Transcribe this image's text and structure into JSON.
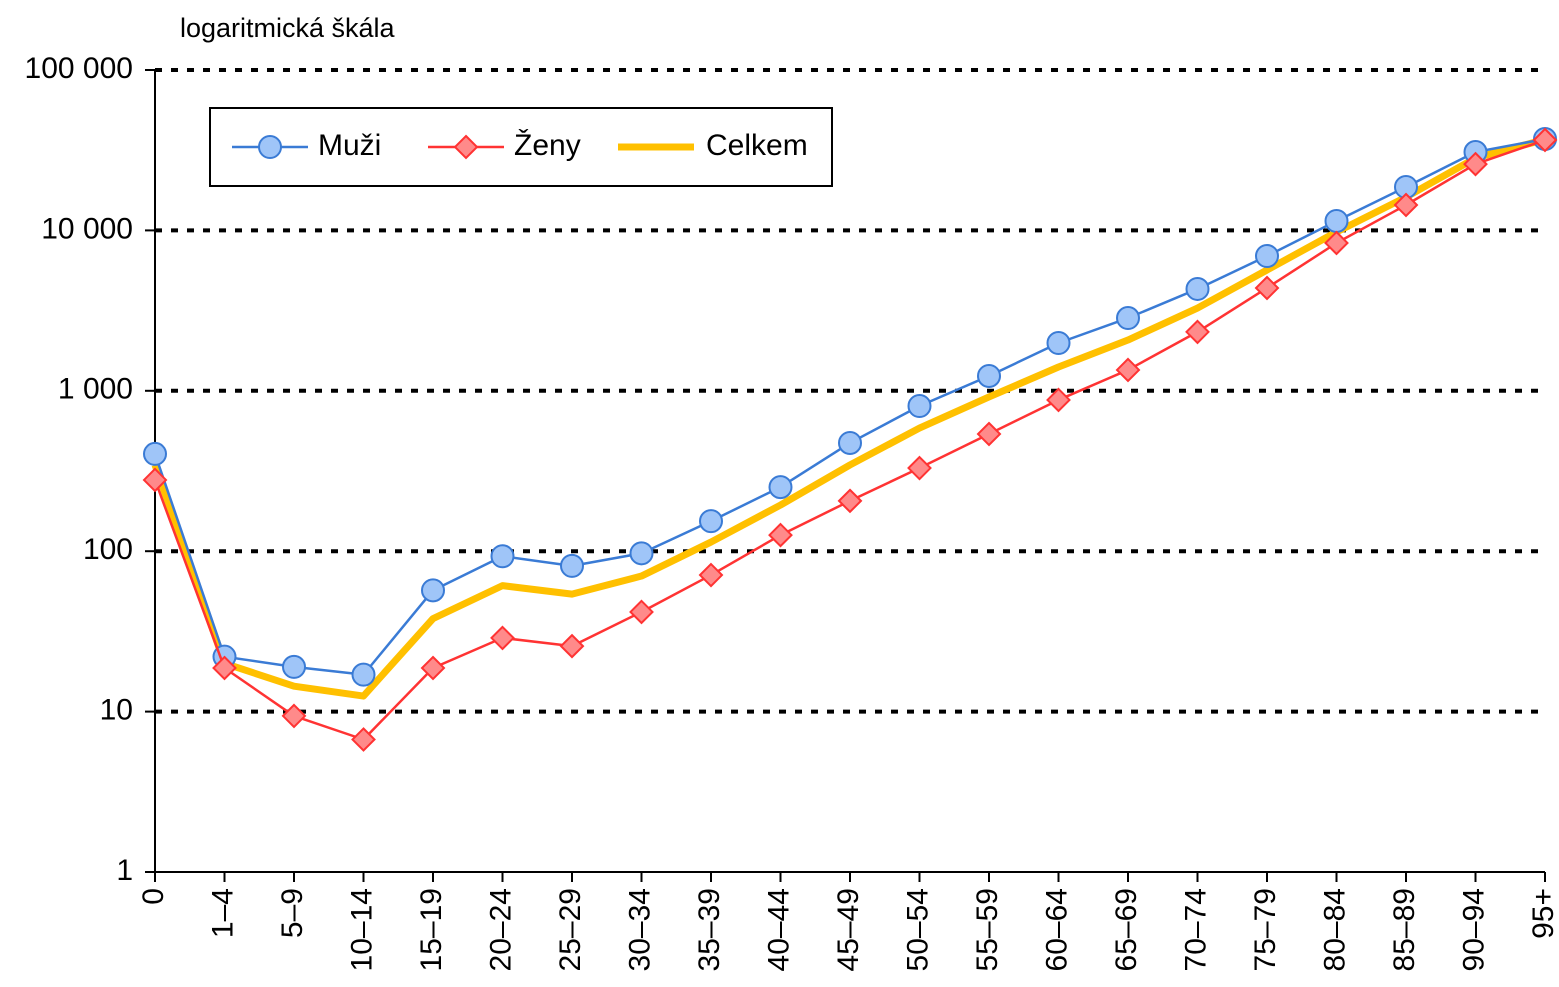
{
  "chart_data": {
    "type": "line",
    "subtitle": "logaritmická škála",
    "categories": [
      "0",
      "1–4",
      "5–9",
      "10–14",
      "15–19",
      "20–24",
      "25–29",
      "30–34",
      "35–39",
      "40–44",
      "45–49",
      "50–54",
      "55–59",
      "60–64",
      "65–69",
      "70–74",
      "75–79",
      "80–84",
      "85–89",
      "90–94",
      "95+"
    ],
    "series": [
      {
        "name": "Muži",
        "color": "#3a7bd5",
        "fill": "#9fc5f8",
        "marker": "circle",
        "values": [
          404,
          22,
          19,
          17,
          57,
          93,
          81,
          97,
          154,
          251,
          473,
          804,
          1237,
          1986,
          2843,
          4315,
          6924,
          11450,
          18660,
          30800,
          37150
        ]
      },
      {
        "name": "Ženy",
        "color": "#ff3333",
        "fill": "#ff8a8a",
        "marker": "diamond",
        "values": [
          278,
          18.7,
          9.4,
          6.7,
          18.7,
          28.8,
          25.6,
          41.8,
          71,
          126,
          206,
          330,
          538,
          877,
          1349,
          2329,
          4375,
          8345,
          14400,
          25900,
          36600
        ]
      },
      {
        "name": "Celkem",
        "color": "#ffc000",
        "marker": "none",
        "values": [
          345,
          20,
          14.4,
          12.5,
          38,
          61,
          54,
          70,
          114,
          194,
          345,
          586,
          915,
          1407,
          2073,
          3282,
          5664,
          9772,
          16130,
          28260,
          36900
        ]
      }
    ],
    "log": true,
    "grid": true,
    "ylim": [
      1,
      100000
    ],
    "yticks": [
      1,
      10,
      100,
      {
        "value": 1000,
        "label": "1 000"
      },
      {
        "value": 10000,
        "label": "10 000"
      },
      {
        "value": 100000,
        "label": "100 000"
      }
    ],
    "legend": "top-left"
  }
}
